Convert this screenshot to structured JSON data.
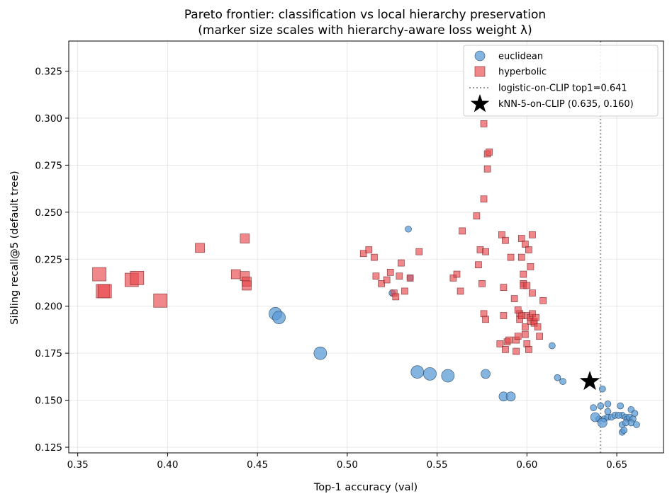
{
  "chart_data": {
    "type": "scatter",
    "title": "Pareto frontier: classification vs local hierarchy preservation",
    "subtitle": "(marker size scales with hierarchy-aware loss weight λ)",
    "xlabel": "Top-1 accuracy (val)",
    "ylabel": "Sibling recall@5 (default tree)",
    "xlim": [
      0.345,
      0.676
    ],
    "ylim": [
      0.122,
      0.341
    ],
    "xticks": [
      0.35,
      0.4,
      0.45,
      0.5,
      0.55,
      0.6,
      0.65
    ],
    "xtick_labels": [
      "0.35",
      "0.40",
      "0.45",
      "0.50",
      "0.55",
      "0.60",
      "0.65"
    ],
    "yticks": [
      0.125,
      0.15,
      0.175,
      0.2,
      0.225,
      0.25,
      0.275,
      0.3,
      0.325
    ],
    "ytick_labels": [
      "0.125",
      "0.150",
      "0.175",
      "0.200",
      "0.225",
      "0.250",
      "0.275",
      "0.300",
      "0.325"
    ],
    "grid": true,
    "legend_position": "top-right",
    "colors": {
      "euclidean": "#5b9bd5",
      "euclidean_edge": "#2c4a66",
      "hyperbolic": "#e8484d",
      "hyperbolic_edge": "#7a2a2c",
      "reference_line": "#999999",
      "star": "#000000"
    },
    "series": [
      {
        "name": "euclidean",
        "marker": "circle",
        "points": [
          [
            0.534,
            0.241,
            1
          ],
          [
            0.525,
            0.207,
            1
          ],
          [
            0.535,
            0.215,
            1
          ],
          [
            0.614,
            0.179,
            1
          ],
          [
            0.617,
            0.162,
            1
          ],
          [
            0.62,
            0.16,
            1
          ],
          [
            0.642,
            0.156,
            1
          ],
          [
            0.645,
            0.148,
            1
          ],
          [
            0.641,
            0.147,
            1
          ],
          [
            0.637,
            0.146,
            1
          ],
          [
            0.64,
            0.14,
            1
          ],
          [
            0.643,
            0.14,
            1
          ],
          [
            0.645,
            0.141,
            1
          ],
          [
            0.647,
            0.141,
            1
          ],
          [
            0.645,
            0.144,
            1
          ],
          [
            0.649,
            0.142,
            1
          ],
          [
            0.652,
            0.147,
            1
          ],
          [
            0.653,
            0.142,
            1
          ],
          [
            0.655,
            0.141,
            1
          ],
          [
            0.656,
            0.14,
            1
          ],
          [
            0.657,
            0.141,
            1
          ],
          [
            0.658,
            0.145,
            1
          ],
          [
            0.66,
            0.143,
            1
          ],
          [
            0.659,
            0.14,
            1
          ],
          [
            0.658,
            0.138,
            1
          ],
          [
            0.661,
            0.137,
            1
          ],
          [
            0.653,
            0.137,
            1
          ],
          [
            0.655,
            0.138,
            1
          ],
          [
            0.653,
            0.133,
            1
          ],
          [
            0.654,
            0.134,
            1
          ],
          [
            0.651,
            0.142,
            1
          ],
          [
            0.638,
            0.141,
            2
          ],
          [
            0.642,
            0.138,
            2
          ],
          [
            0.577,
            0.164,
            2
          ],
          [
            0.587,
            0.152,
            2
          ],
          [
            0.591,
            0.152,
            2
          ],
          [
            0.485,
            0.175,
            3
          ],
          [
            0.539,
            0.165,
            3
          ],
          [
            0.546,
            0.164,
            3
          ],
          [
            0.556,
            0.163,
            3
          ],
          [
            0.46,
            0.196,
            3
          ],
          [
            0.462,
            0.194,
            3
          ]
        ]
      },
      {
        "name": "hyperbolic",
        "marker": "square",
        "points": [
          [
            0.509,
            0.228,
            1
          ],
          [
            0.512,
            0.23,
            1
          ],
          [
            0.515,
            0.226,
            1
          ],
          [
            0.516,
            0.216,
            1
          ],
          [
            0.519,
            0.212,
            1
          ],
          [
            0.522,
            0.214,
            1
          ],
          [
            0.524,
            0.218,
            1
          ],
          [
            0.526,
            0.207,
            1
          ],
          [
            0.527,
            0.205,
            1
          ],
          [
            0.529,
            0.216,
            1
          ],
          [
            0.53,
            0.223,
            1
          ],
          [
            0.532,
            0.208,
            1
          ],
          [
            0.535,
            0.215,
            1
          ],
          [
            0.54,
            0.229,
            1
          ],
          [
            0.559,
            0.215,
            1
          ],
          [
            0.561,
            0.217,
            1
          ],
          [
            0.563,
            0.208,
            1
          ],
          [
            0.564,
            0.24,
            1
          ],
          [
            0.572,
            0.248,
            1
          ],
          [
            0.573,
            0.222,
            1
          ],
          [
            0.574,
            0.23,
            1
          ],
          [
            0.575,
            0.212,
            1
          ],
          [
            0.576,
            0.257,
            1
          ],
          [
            0.576,
            0.297,
            1
          ],
          [
            0.577,
            0.229,
            1
          ],
          [
            0.576,
            0.196,
            1
          ],
          [
            0.577,
            0.193,
            1
          ],
          [
            0.578,
            0.281,
            1
          ],
          [
            0.579,
            0.282,
            1
          ],
          [
            0.578,
            0.273,
            1
          ],
          [
            0.586,
            0.238,
            1
          ],
          [
            0.587,
            0.21,
            1
          ],
          [
            0.587,
            0.195,
            1
          ],
          [
            0.588,
            0.235,
            1
          ],
          [
            0.585,
            0.18,
            1
          ],
          [
            0.588,
            0.177,
            1
          ],
          [
            0.589,
            0.181,
            1
          ],
          [
            0.59,
            0.182,
            1
          ],
          [
            0.591,
            0.226,
            1
          ],
          [
            0.593,
            0.204,
            1
          ],
          [
            0.594,
            0.182,
            1
          ],
          [
            0.595,
            0.184,
            1
          ],
          [
            0.594,
            0.176,
            1
          ],
          [
            0.596,
            0.196,
            1
          ],
          [
            0.596,
            0.193,
            1
          ],
          [
            0.597,
            0.236,
            1
          ],
          [
            0.597,
            0.226,
            1
          ],
          [
            0.598,
            0.212,
            1
          ],
          [
            0.598,
            0.217,
            1
          ],
          [
            0.598,
            0.211,
            1
          ],
          [
            0.599,
            0.233,
            1
          ],
          [
            0.6,
            0.211,
            1
          ],
          [
            0.599,
            0.189,
            1
          ],
          [
            0.599,
            0.185,
            1
          ],
          [
            0.6,
            0.18,
            1
          ],
          [
            0.601,
            0.23,
            1
          ],
          [
            0.601,
            0.177,
            1
          ],
          [
            0.6,
            0.195,
            1
          ],
          [
            0.602,
            0.192,
            1
          ],
          [
            0.602,
            0.194,
            1
          ],
          [
            0.603,
            0.238,
            1
          ],
          [
            0.602,
            0.221,
            1
          ],
          [
            0.603,
            0.207,
            1
          ],
          [
            0.603,
            0.196,
            1
          ],
          [
            0.604,
            0.192,
            1
          ],
          [
            0.604,
            0.191,
            1
          ],
          [
            0.605,
            0.194,
            1
          ],
          [
            0.606,
            0.189,
            1
          ],
          [
            0.607,
            0.184,
            1
          ],
          [
            0.609,
            0.203,
            1
          ],
          [
            0.597,
            0.195,
            1
          ],
          [
            0.595,
            0.198,
            1
          ],
          [
            0.418,
            0.231,
            2
          ],
          [
            0.438,
            0.217,
            2
          ],
          [
            0.443,
            0.236,
            2
          ],
          [
            0.443,
            0.216,
            2
          ],
          [
            0.444,
            0.213,
            2
          ],
          [
            0.444,
            0.211,
            2
          ],
          [
            0.38,
            0.214,
            3
          ],
          [
            0.383,
            0.215,
            3
          ],
          [
            0.364,
            0.208,
            3
          ],
          [
            0.365,
            0.208,
            3
          ],
          [
            0.396,
            0.203,
            3
          ],
          [
            0.362,
            0.217,
            3
          ]
        ]
      }
    ],
    "reference_line": {
      "label": "logistic-on-CLIP top1=0.641",
      "x": 0.641,
      "style": "dotted"
    },
    "reference_point": {
      "label": "kNN-5-on-CLIP (0.635, 0.160)",
      "x": 0.635,
      "y": 0.16,
      "marker": "star"
    },
    "legend": [
      "euclidean",
      "hyperbolic",
      "logistic-on-CLIP top1=0.641",
      "kNN-5-on-CLIP (0.635, 0.160)"
    ]
  }
}
